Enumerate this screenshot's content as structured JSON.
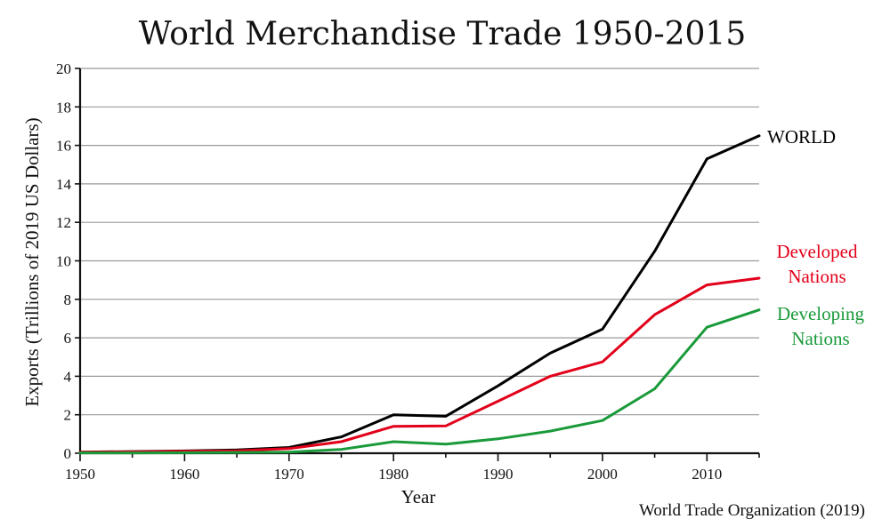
{
  "chart_data": {
    "type": "line",
    "title": "World Merchandise Trade 1950-2015",
    "xlabel": "Year",
    "ylabel": "Exports (Trillions of 2019 US Dollars)",
    "source": "World Trade Organization (2019)",
    "xlim": [
      1950,
      2015
    ],
    "ylim": [
      0,
      20
    ],
    "xticks": [
      1950,
      1960,
      1970,
      1980,
      1990,
      2000,
      2010
    ],
    "yticks": [
      0,
      2,
      4,
      6,
      8,
      10,
      12,
      14,
      16,
      18,
      20
    ],
    "grid": true,
    "x": [
      1950,
      1955,
      1960,
      1965,
      1970,
      1975,
      1980,
      1985,
      1990,
      1995,
      2000,
      2005,
      2010,
      2015
    ],
    "series": [
      {
        "name": "WORLD",
        "label_lines": [
          "WORLD"
        ],
        "color": "#000000",
        "values": [
          0.06,
          0.09,
          0.12,
          0.17,
          0.3,
          0.85,
          2.0,
          1.92,
          3.5,
          5.2,
          6.45,
          10.5,
          15.3,
          16.5
        ]
      },
      {
        "name": "Developed Nations",
        "label_lines": [
          "Developed",
          "Nations"
        ],
        "color": "#e2001a",
        "values": [
          0.05,
          0.07,
          0.1,
          0.13,
          0.24,
          0.6,
          1.4,
          1.42,
          2.7,
          4.0,
          4.75,
          7.2,
          8.75,
          9.1
        ]
      },
      {
        "name": "Developing Nations",
        "label_lines": [
          "Developing",
          "Nations"
        ],
        "color": "#1a9a3a",
        "values": [
          0.02,
          0.02,
          0.03,
          0.04,
          0.06,
          0.2,
          0.6,
          0.47,
          0.75,
          1.15,
          1.7,
          3.35,
          6.55,
          7.45
        ]
      }
    ]
  }
}
